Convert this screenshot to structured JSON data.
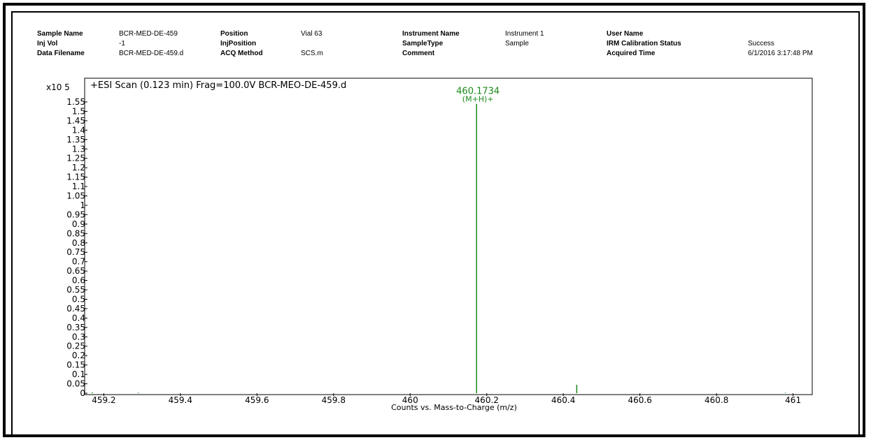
{
  "header": {
    "fields": [
      {
        "key": "Sample Name",
        "value": "BCR-MED-DE-459"
      },
      {
        "key": "Inj Vol",
        "value": "-1"
      },
      {
        "key": "Data Filename",
        "value": "BCR-MED-DE-459.d"
      },
      {
        "key": "Position",
        "value": "Vial 63"
      },
      {
        "key": "InjPosition",
        "value": ""
      },
      {
        "key": "ACQ Method",
        "value": "SCS.m"
      },
      {
        "key": "Instrument Name",
        "value": "Instrument 1"
      },
      {
        "key": "SampleType",
        "value": "Sample"
      },
      {
        "key": "Comment",
        "value": ""
      },
      {
        "key": "User Name",
        "value": ""
      },
      {
        "key": "IRM Calibration Status",
        "value": "Success"
      },
      {
        "key": "Acquired Time",
        "value": "6/1/2016 3:17:48 PM"
      }
    ]
  },
  "colors": {
    "peak": "#1a8a1a",
    "axis": "#000000",
    "frame": "#000000"
  },
  "chart_data": {
    "type": "bar",
    "title": "+ESI Scan (0.123 min) Frag=100.0V BCR-MEO-DE-459.d",
    "y_multiplier": "x10 5",
    "xlabel": "Counts vs. Mass-to-Charge (m/z)",
    "ylabel": "",
    "xlim": [
      459.15,
      461.05
    ],
    "ylim": [
      0,
      1.6
    ],
    "x_ticks": [
      {
        "value": 459.2,
        "label": "459.2"
      },
      {
        "value": 459.4,
        "label": "459.4"
      },
      {
        "value": 459.6,
        "label": "459.6"
      },
      {
        "value": 459.8,
        "label": "459.8"
      },
      {
        "value": 460.0,
        "label": "460"
      },
      {
        "value": 460.2,
        "label": "460.2"
      },
      {
        "value": 460.4,
        "label": "460.4"
      },
      {
        "value": 460.6,
        "label": "460.6"
      },
      {
        "value": 460.8,
        "label": "460.8"
      },
      {
        "value": 461.0,
        "label": "461"
      }
    ],
    "y_ticks": [
      "0",
      "0.05",
      "0.1",
      "0.15",
      "0.2",
      "0.25",
      "0.3",
      "0.35",
      "0.4",
      "0.45",
      "0.5",
      "0.55",
      "0.6",
      "0.65",
      "0.7",
      "0.75",
      "0.8",
      "0.85",
      "0.9",
      "0.95",
      "1",
      "1.05",
      "1.1",
      "1.15",
      "1.2",
      "1.25",
      "1.3",
      "1.35",
      "1.4",
      "1.45",
      "1.5",
      "1.55"
    ],
    "peaks": [
      {
        "mz": 459.17,
        "intensity": 0.005
      },
      {
        "mz": 459.29,
        "intensity": 0.003
      },
      {
        "mz": 460.1734,
        "intensity": 1.54,
        "label": "460.1734",
        "annotation": "(M+H)+"
      },
      {
        "mz": 460.435,
        "intensity": 0.045
      },
      {
        "mz": 460.98,
        "intensity": 0.003
      }
    ]
  }
}
